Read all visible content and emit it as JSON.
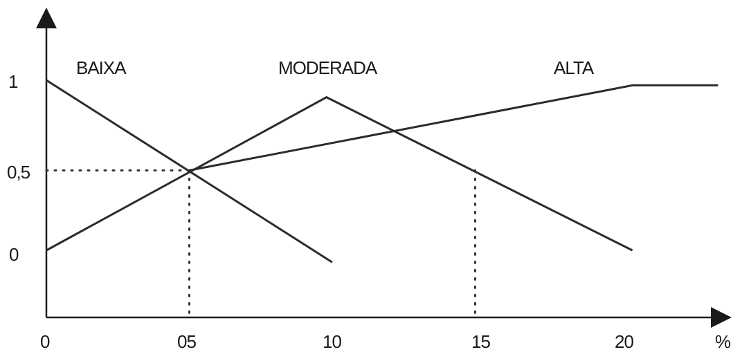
{
  "chart_data": {
    "type": "line",
    "x": [
      0,
      5,
      10,
      15,
      20,
      22.5
    ],
    "xticks": [
      "0",
      "05",
      "10",
      "15",
      "20"
    ],
    "yticks": [
      "0",
      "0,5",
      "1"
    ],
    "xunit": "%",
    "xlim": [
      0,
      24
    ],
    "ylim": [
      -0.4,
      1.3
    ],
    "grid": false,
    "series": [
      {
        "name": "BAIXA",
        "points": [
          [
            0,
            1
          ],
          [
            10,
            -0.07
          ]
        ]
      },
      {
        "name": "MODERADA",
        "points": [
          [
            0,
            0
          ],
          [
            9.8,
            0.9
          ],
          [
            20.5,
            0
          ]
        ]
      },
      {
        "name": "ALTA",
        "points": [
          [
            5,
            0.47
          ],
          [
            20.5,
            0.97
          ],
          [
            23.5,
            0.97
          ]
        ]
      }
    ],
    "reference_lines": [
      {
        "x": 5,
        "y": 0.47
      },
      {
        "x": 15,
        "y": 0.47
      }
    ],
    "colors": {
      "line": "#2b2b2b",
      "axis": "#1a1a1a"
    }
  }
}
